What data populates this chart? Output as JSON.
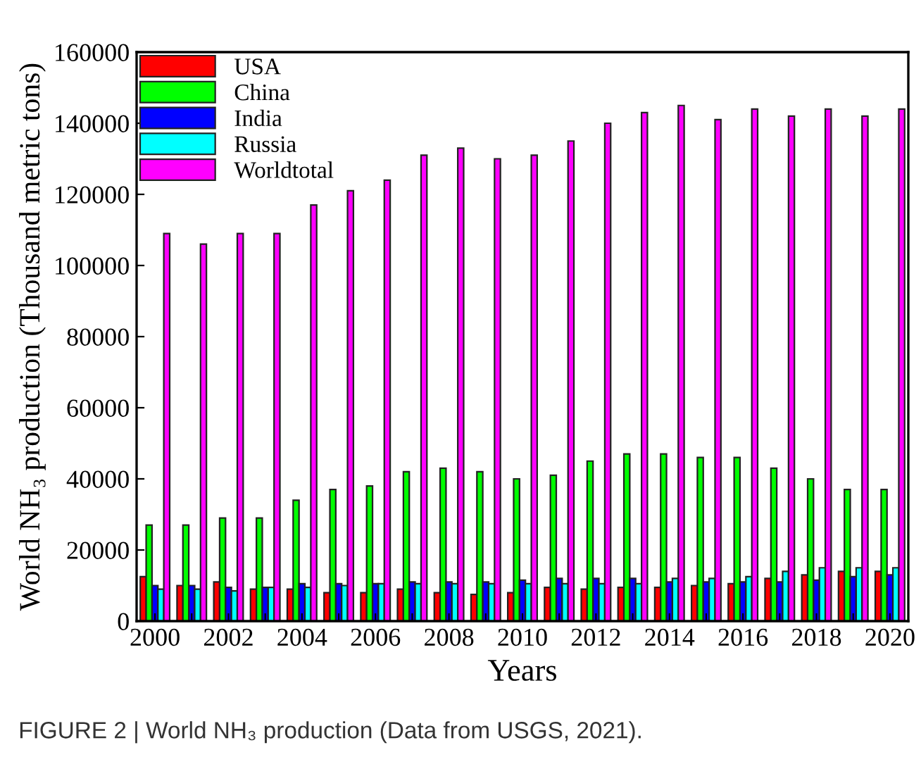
{
  "chart_data": {
    "type": "bar",
    "xlabel": "Years",
    "ylabel": "World NH₃ production (Thousand metric tons)",
    "categories": [
      "2000",
      null,
      "2002",
      null,
      "2004",
      null,
      "2006",
      null,
      "2008",
      null,
      "2010",
      null,
      "2012",
      null,
      "2014",
      null,
      "2016",
      null,
      "2018",
      null,
      "2020"
    ],
    "series": [
      {
        "name": "USA",
        "color": "#ff0000",
        "values": [
          12500,
          10000,
          11000,
          9000,
          9000,
          8000,
          8000,
          9000,
          8000,
          7500,
          8000,
          9500,
          9000,
          9500,
          9500,
          10000,
          10500,
          12000,
          13000,
          14000,
          14000
        ]
      },
      {
        "name": "China",
        "color": "#00ff00",
        "values": [
          27000,
          27000,
          29000,
          29000,
          34000,
          37000,
          38000,
          42000,
          43000,
          42000,
          40000,
          41000,
          45000,
          47000,
          47000,
          46000,
          46000,
          43000,
          40000,
          37000,
          37000
        ]
      },
      {
        "name": "India",
        "color": "#0000ff",
        "values": [
          10000,
          10000,
          9500,
          9500,
          10500,
          10500,
          10500,
          11000,
          11000,
          11000,
          11500,
          12000,
          12000,
          12000,
          11000,
          11000,
          11000,
          11000,
          11500,
          12500,
          13000
        ]
      },
      {
        "name": "Russia",
        "color": "#00ffff",
        "values": [
          9000,
          9000,
          8500,
          9500,
          9500,
          10000,
          10500,
          10500,
          10500,
          10500,
          10500,
          10500,
          10500,
          10500,
          12000,
          12000,
          12500,
          14000,
          15000,
          15000,
          15000
        ]
      },
      {
        "name": "Worldtotal",
        "color": "#ff00ff",
        "values": [
          109000,
          106000,
          109000,
          109000,
          117000,
          121000,
          124000,
          131000,
          133000,
          130000,
          131000,
          135000,
          140000,
          143000,
          145000,
          141000,
          144000,
          142000,
          144000,
          142000,
          144000
        ]
      }
    ],
    "ylim": [
      0,
      160000
    ],
    "yticks": [
      0,
      20000,
      40000,
      60000,
      80000,
      100000,
      120000,
      140000,
      160000
    ],
    "legend": "top left",
    "annotations": [
      "FIGURE 2 | World NH₃ production (Data from USGS, 2021)."
    ]
  }
}
